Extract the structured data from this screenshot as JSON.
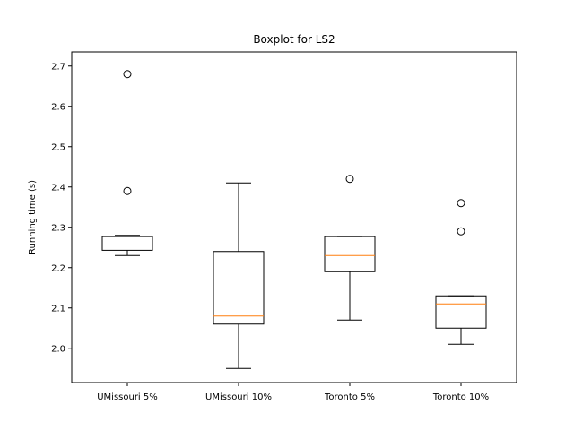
{
  "chart_data": {
    "type": "boxplot",
    "title": "Boxplot for LS2",
    "xlabel": "",
    "ylabel": "Running time (s)",
    "ylim": [
      1.915,
      2.735
    ],
    "yticks": [
      "2.0",
      "2.1",
      "2.2",
      "2.3",
      "2.4",
      "2.5",
      "2.6",
      "2.7"
    ],
    "categories": [
      "UMissouri 5%",
      "UMissouri 10%",
      "Toronto 5%",
      "Toronto 10%"
    ],
    "boxes": [
      {
        "whisker_low": 2.23,
        "q1": 2.243,
        "median": 2.256,
        "q3": 2.277,
        "whisker_high": 2.28,
        "outliers": [
          2.39,
          2.68
        ]
      },
      {
        "whisker_low": 1.95,
        "q1": 2.06,
        "median": 2.08,
        "q3": 2.24,
        "whisker_high": 2.41,
        "outliers": []
      },
      {
        "whisker_low": 2.07,
        "q1": 2.19,
        "median": 2.23,
        "q3": 2.277,
        "whisker_high": 2.277,
        "outliers": [
          2.42
        ]
      },
      {
        "whisker_low": 2.01,
        "q1": 2.05,
        "median": 2.11,
        "q3": 2.13,
        "whisker_high": 2.13,
        "outliers": [
          2.29,
          2.36
        ]
      }
    ],
    "colors": {
      "box": "#000000",
      "median": "#ff7f0e",
      "outlier": "#000000"
    },
    "grid": false,
    "legend": "none"
  }
}
